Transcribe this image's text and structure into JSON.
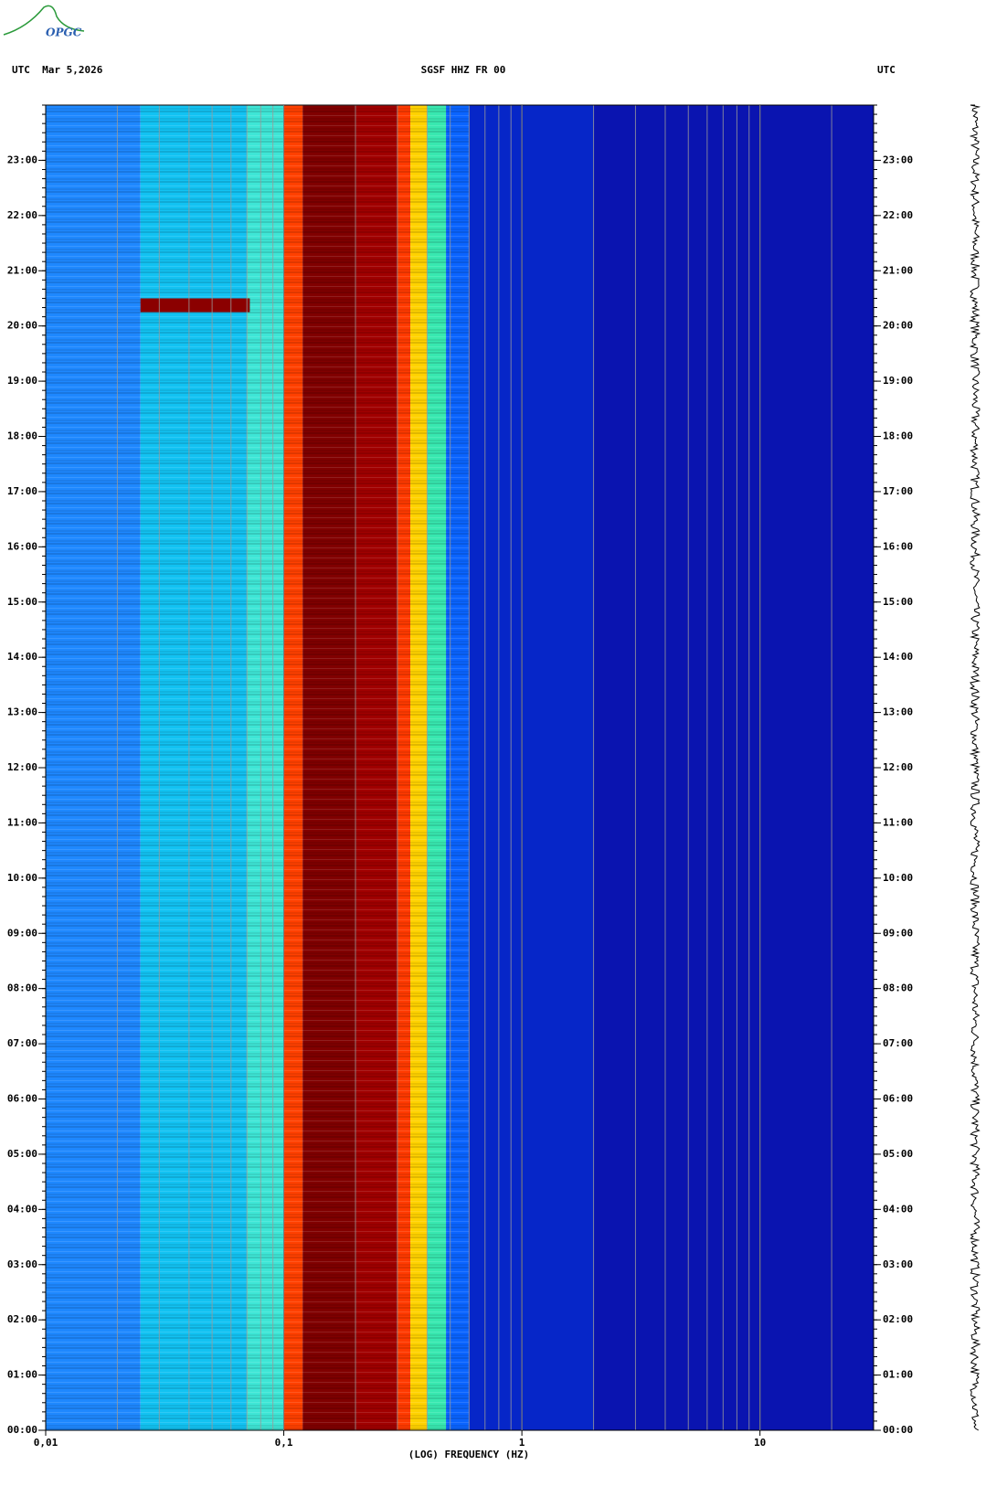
{
  "logo": "OPGC",
  "chart_data": {
    "type": "spectrogram",
    "title": "SGSF HHZ FR 00",
    "date_label": "UTC  Mar 5,2026",
    "right_label": "UTC",
    "x_label": "(LOG) FREQUENCY (HZ)",
    "x_scale": "log",
    "xlim": [
      0.01,
      30
    ],
    "xticks": [
      {
        "value": 0.01,
        "label": "0,01"
      },
      {
        "value": 0.1,
        "label": "0,1"
      },
      1,
      10
    ],
    "ylim": [
      0,
      24
    ],
    "yticks": [
      {
        "value": 0,
        "label": "00:00"
      },
      {
        "value": 1,
        "label": "01:00"
      },
      {
        "value": 2,
        "label": "02:00"
      },
      {
        "value": 3,
        "label": "03:00"
      },
      {
        "value": 4,
        "label": "04:00"
      },
      {
        "value": 5,
        "label": "05:00"
      },
      {
        "value": 6,
        "label": "06:00"
      },
      {
        "value": 7,
        "label": "07:00"
      },
      {
        "value": 8,
        "label": "08:00"
      },
      {
        "value": 9,
        "label": "09:00"
      },
      {
        "value": 10,
        "label": "10:00"
      },
      {
        "value": 11,
        "label": "11:00"
      },
      {
        "value": 12,
        "label": "12:00"
      },
      {
        "value": 13,
        "label": "13:00"
      },
      {
        "value": 14,
        "label": "14:00"
      },
      {
        "value": 15,
        "label": "15:00"
      },
      {
        "value": 16,
        "label": "16:00"
      },
      {
        "value": 17,
        "label": "17:00"
      },
      {
        "value": 18,
        "label": "18:00"
      },
      {
        "value": 19,
        "label": "19:00"
      },
      {
        "value": 20,
        "label": "20:00"
      },
      {
        "value": 21,
        "label": "21:00"
      },
      {
        "value": 22,
        "label": "22:00"
      },
      {
        "value": 23,
        "label": "23:00"
      }
    ],
    "grid": true,
    "bands": {
      "edges": [
        0.01,
        0.025,
        0.07,
        0.1,
        0.12,
        0.2,
        0.3,
        0.34,
        0.4,
        0.48,
        0.6,
        2,
        30
      ],
      "colors": [
        "#1e88ff",
        "#12c2f2",
        "#3ee6d6",
        "#ff4000",
        "#800000",
        "#a00000",
        "#ff3a00",
        "#ffd200",
        "#38e8b0",
        "#0a64ff",
        "#0626c8",
        "#0a14b0"
      ]
    },
    "events": [
      {
        "start": 20.25,
        "end": 20.5,
        "freq": [
          0.025,
          0.072
        ],
        "color": "#8b0000"
      }
    ]
  }
}
